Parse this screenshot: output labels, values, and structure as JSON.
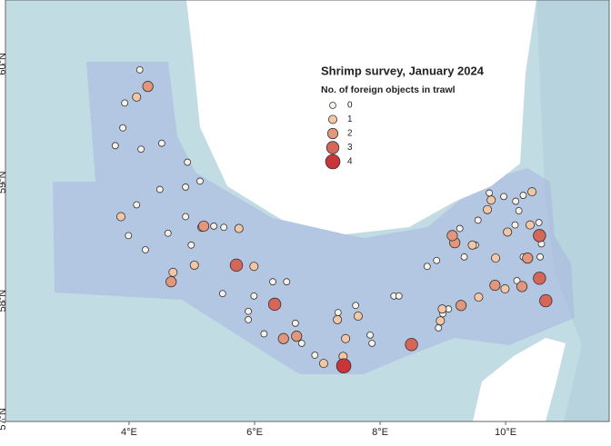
{
  "chart_data": {
    "type": "scatter",
    "title": "Shrimp survey, January 2024",
    "legend_title": "No. of foreign objects in trawl",
    "xlim": [
      2.03,
      11.65
    ],
    "ylim": [
      56.98,
      60.54
    ],
    "xticks": [
      {
        "value": 4,
        "label": "4°E"
      },
      {
        "value": 6,
        "label": "6°E"
      },
      {
        "value": 8,
        "label": "8°E"
      },
      {
        "value": 10,
        "label": "10°E"
      }
    ],
    "yticks": [
      {
        "value": 57,
        "label": "57°N"
      },
      {
        "value": 58,
        "label": "58°N"
      },
      {
        "value": 59,
        "label": "59°N"
      },
      {
        "value": 60,
        "label": "60°N"
      }
    ],
    "series": [
      {
        "name": "0",
        "color": "#f6f2ea",
        "x": [
          4.17,
          3.93,
          3.9,
          3.78,
          4.19,
          4.52,
          4.93,
          5.13,
          4.9,
          4.49,
          4.12,
          3.99,
          4.26,
          4.62,
          4.9,
          5.35,
          5.51,
          4.99,
          5.49,
          5.9,
          5.99,
          6.29,
          6.51,
          6.15,
          5.9,
          6.65,
          6.75,
          6.96,
          7.33,
          7.61,
          7.84,
          7.87,
          8.22,
          8.3,
          8.75,
          8.9,
          9.34,
          9.52,
          9.27,
          8.93,
          9.0,
          9.09,
          9.56,
          9.74,
          9.97,
          10.16,
          10.28,
          10.21,
          10.15,
          10.53,
          10.28,
          10.18,
          10.57,
          10.55
        ],
        "values": [
          59.95,
          59.67,
          59.46,
          59.31,
          59.28,
          59.33,
          59.17,
          59.01,
          58.96,
          58.94,
          58.81,
          58.55,
          58.43,
          58.57,
          58.71,
          58.63,
          58.62,
          58.47,
          58.06,
          57.91,
          58.04,
          58.16,
          58.16,
          57.72,
          57.84,
          57.81,
          57.64,
          57.54,
          57.9,
          57.96,
          57.71,
          57.64,
          58.04,
          58.04,
          58.29,
          58.34,
          58.37,
          58.47,
          58.61,
          57.77,
          57.89,
          57.93,
          58.68,
          58.91,
          58.88,
          58.84,
          58.89,
          58.76,
          58.64,
          58.66,
          58.37,
          58.17,
          58.48,
          58.37
        ]
      },
      {
        "name": "1",
        "color": "#f3c7a6",
        "x": [
          4.12,
          3.87,
          4.7,
          5.04,
          5.16,
          5.75,
          5.99,
          7.32,
          7.65,
          7.1,
          7.45,
          7.41,
          8.99,
          8.96,
          9.57,
          9.99,
          10.03,
          9.71,
          9.77,
          10.42,
          10.39,
          9.47,
          9.84
        ],
        "values": [
          59.72,
          58.71,
          58.24,
          58.3,
          58.62,
          58.61,
          58.29,
          57.84,
          57.87,
          57.47,
          57.68,
          57.53,
          57.93,
          57.83,
          58.03,
          58.1,
          58.58,
          58.77,
          58.85,
          58.92,
          58.64,
          58.47,
          58.36
        ]
      },
      {
        "name": "2",
        "color": "#e2977c",
        "x": [
          4.3,
          4.67,
          5.19,
          6.46,
          6.67,
          9.19,
          9.15,
          9.29,
          9.83,
          10.35,
          10.26
        ],
        "values": [
          59.81,
          58.16,
          58.63,
          57.68,
          57.7,
          58.49,
          58.55,
          57.96,
          58.13,
          58.36,
          58.12
        ]
      },
      {
        "name": "3",
        "color": "#d6655a",
        "x": [
          5.71,
          6.32,
          8.5,
          10.54,
          10.54,
          10.64
        ],
        "values": [
          58.3,
          57.97,
          57.63,
          58.55,
          58.19,
          58.0
        ]
      },
      {
        "name": "4",
        "color": "#c9353a",
        "x": [
          7.42
        ],
        "values": [
          57.45
        ]
      }
    ]
  }
}
